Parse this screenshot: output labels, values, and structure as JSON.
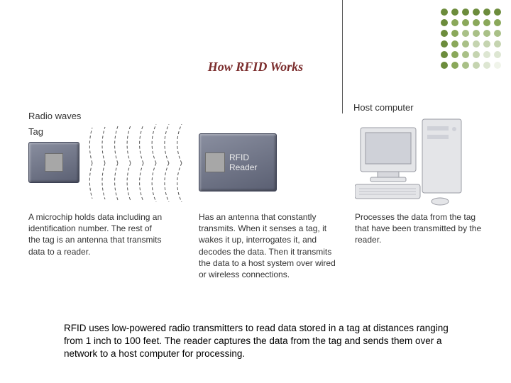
{
  "title": "How RFID Works",
  "dot_pattern": {
    "rows": 6,
    "cols": 6,
    "colors": [
      [
        "#6c8c3c",
        "#6c8c3c",
        "#6c8c3c",
        "#6c8c3c",
        "#6c8c3c",
        "#6c8c3c"
      ],
      [
        "#6c8c3c",
        "#8aa85a",
        "#8aa85a",
        "#8aa85a",
        "#8aa85a",
        "#8aa85a"
      ],
      [
        "#6c8c3c",
        "#8aa85a",
        "#a9c087",
        "#a9c087",
        "#a9c087",
        "#a9c087"
      ],
      [
        "#6c8c3c",
        "#8aa85a",
        "#a9c087",
        "#c5d4b0",
        "#c5d4b0",
        "#c5d4b0"
      ],
      [
        "#6c8c3c",
        "#8aa85a",
        "#a9c087",
        "#c5d4b0",
        "#dde6d2",
        "#dde6d2"
      ],
      [
        "#6c8c3c",
        "#8aa85a",
        "#a9c087",
        "#c5d4b0",
        "#dde6d2",
        "#f0f4ea"
      ]
    ]
  },
  "labels": {
    "tag": "Tag",
    "radio_waves": "Radio waves",
    "host_computer": "Host computer",
    "rfid_reader": "RFID\nReader"
  },
  "descriptions": {
    "tag": "A microchip holds data including an identification number. The rest of the tag is an antenna that transmits data to a reader.",
    "reader": "Has an antenna that constantly transmits. When it senses a tag, it wakes it up, interrogates it, and decodes the data. Then it transmits the data to a host system over wired or wireless connections.",
    "computer": "Processes the data from the tag that have been transmitted by the reader."
  },
  "caption": "RFID uses low-powered radio transmitters to read data stored in a tag at distances ranging from 1 inch to 100 feet. The reader captures the data from the tag and sends them over a network to a host computer for processing.",
  "styles": {
    "title_color": "#7b2d2d",
    "box_fill_top": "#8a8fa0",
    "box_fill_bottom": "#5a5f72",
    "chip_fill": "#a7a7a7",
    "wave_color": "#555555",
    "connector_color": "#555555",
    "computer_body": "#e4e5e8",
    "computer_shadow": "#bfc1c7",
    "title_fontsize": 18,
    "label_fontsize": 13,
    "desc_fontsize": 12,
    "caption_fontsize": 13.5
  }
}
